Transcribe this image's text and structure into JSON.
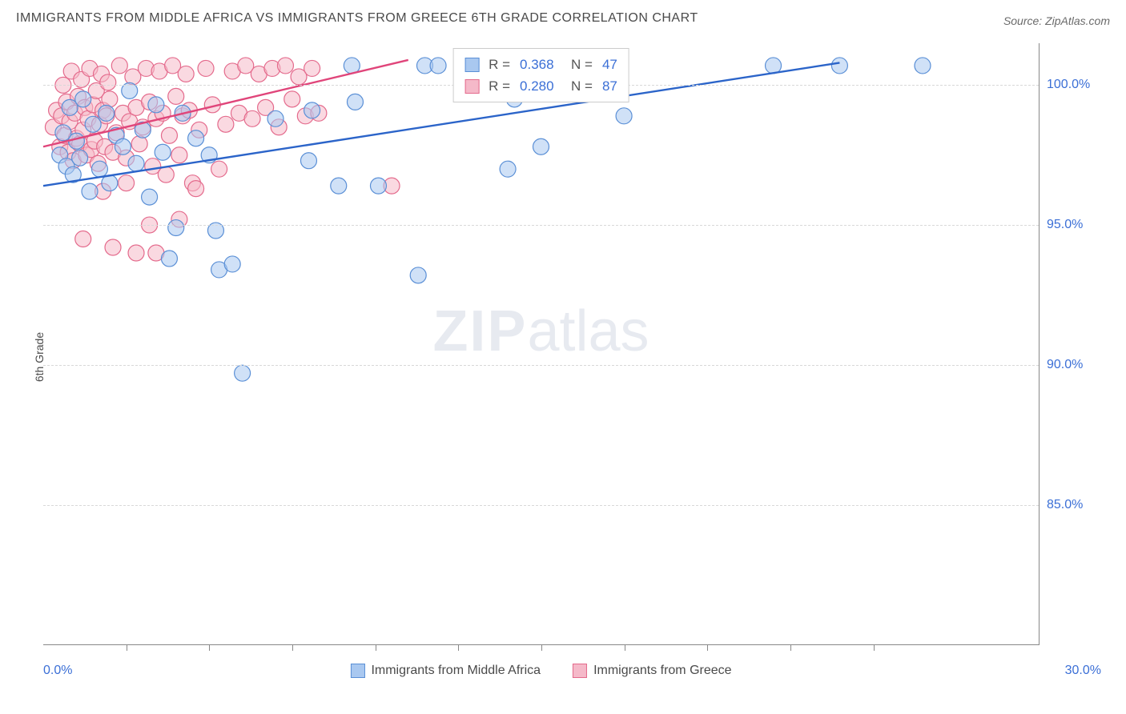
{
  "title": "IMMIGRANTS FROM MIDDLE AFRICA VS IMMIGRANTS FROM GREECE 6TH GRADE CORRELATION CHART",
  "source": "Source: ZipAtlas.com",
  "ylabel": "6th Grade",
  "watermark_a": "ZIP",
  "watermark_b": "atlas",
  "chart": {
    "type": "scatter",
    "plot_bg": "#ffffff",
    "grid_color": "#d8d8d8",
    "axis_color": "#888888",
    "xlim": [
      0.0,
      30.0
    ],
    "ylim": [
      80.0,
      101.5
    ],
    "y_ticks": [
      85.0,
      90.0,
      95.0,
      100.0
    ],
    "y_tick_labels": [
      "85.0%",
      "90.0%",
      "95.0%",
      "100.0%"
    ],
    "x_tick_positions": [
      2.5,
      5.0,
      7.5,
      10.0,
      12.5,
      15.0,
      17.5,
      20.0,
      22.5,
      25.0
    ],
    "x_axis_label_left": "0.0%",
    "x_axis_label_right": "30.0%",
    "marker_radius": 10,
    "marker_opacity": 0.55,
    "marker_stroke_width": 1.2,
    "line_width": 2.4,
    "series": [
      {
        "name": "Immigrants from Middle Africa",
        "color_fill": "#a9c8f0",
        "color_stroke": "#5a8fd6",
        "line_color": "#2b64c9",
        "R": "0.368",
        "N": "47",
        "trend": {
          "x1": 0.0,
          "y1": 96.4,
          "x2": 24.0,
          "y2": 100.8
        },
        "points": [
          [
            0.5,
            97.5
          ],
          [
            0.6,
            98.3
          ],
          [
            0.7,
            97.1
          ],
          [
            0.8,
            99.2
          ],
          [
            0.9,
            96.8
          ],
          [
            1.0,
            98.0
          ],
          [
            1.1,
            97.4
          ],
          [
            1.2,
            99.5
          ],
          [
            1.4,
            96.2
          ],
          [
            1.5,
            98.6
          ],
          [
            1.7,
            97.0
          ],
          [
            1.9,
            99.0
          ],
          [
            2.0,
            96.5
          ],
          [
            2.2,
            98.2
          ],
          [
            2.4,
            97.8
          ],
          [
            2.6,
            99.8
          ],
          [
            2.8,
            97.2
          ],
          [
            3.0,
            98.4
          ],
          [
            3.2,
            96.0
          ],
          [
            3.4,
            99.3
          ],
          [
            3.6,
            97.6
          ],
          [
            3.8,
            93.8
          ],
          [
            4.0,
            94.9
          ],
          [
            4.2,
            99.0
          ],
          [
            4.6,
            98.1
          ],
          [
            5.0,
            97.5
          ],
          [
            5.2,
            94.8
          ],
          [
            5.3,
            93.4
          ],
          [
            5.7,
            93.6
          ],
          [
            6.0,
            89.7
          ],
          [
            7.0,
            98.8
          ],
          [
            8.0,
            97.3
          ],
          [
            8.1,
            99.1
          ],
          [
            8.9,
            96.4
          ],
          [
            9.3,
            100.7
          ],
          [
            9.4,
            99.4
          ],
          [
            10.1,
            96.4
          ],
          [
            11.5,
            100.7
          ],
          [
            11.9,
            100.7
          ],
          [
            11.3,
            93.2
          ],
          [
            14.0,
            97.0
          ],
          [
            14.2,
            99.5
          ],
          [
            15.0,
            97.8
          ],
          [
            17.5,
            98.9
          ],
          [
            22.0,
            100.7
          ],
          [
            24.0,
            100.7
          ],
          [
            26.5,
            100.7
          ]
        ]
      },
      {
        "name": "Immigrants from Greece",
        "color_fill": "#f5b9c9",
        "color_stroke": "#e46a8c",
        "line_color": "#e0457a",
        "R": "0.280",
        "N": "87",
        "trend": {
          "x1": 0.0,
          "y1": 97.8,
          "x2": 11.0,
          "y2": 100.9
        },
        "points": [
          [
            0.3,
            98.5
          ],
          [
            0.4,
            99.1
          ],
          [
            0.5,
            97.8
          ],
          [
            0.55,
            98.9
          ],
          [
            0.6,
            100.0
          ],
          [
            0.65,
            98.2
          ],
          [
            0.7,
            99.4
          ],
          [
            0.75,
            97.6
          ],
          [
            0.8,
            98.7
          ],
          [
            0.85,
            100.5
          ],
          [
            0.9,
            97.3
          ],
          [
            0.95,
            99.0
          ],
          [
            1.0,
            98.1
          ],
          [
            1.05,
            99.6
          ],
          [
            1.1,
            97.9
          ],
          [
            1.15,
            100.2
          ],
          [
            1.2,
            98.4
          ],
          [
            1.25,
            99.2
          ],
          [
            1.3,
            97.5
          ],
          [
            1.35,
            98.8
          ],
          [
            1.4,
            100.6
          ],
          [
            1.45,
            97.7
          ],
          [
            1.5,
            99.3
          ],
          [
            1.55,
            98.0
          ],
          [
            1.6,
            99.8
          ],
          [
            1.65,
            97.2
          ],
          [
            1.7,
            98.6
          ],
          [
            1.75,
            100.4
          ],
          [
            1.8,
            99.1
          ],
          [
            1.85,
            97.8
          ],
          [
            1.9,
            98.9
          ],
          [
            1.95,
            100.1
          ],
          [
            2.0,
            99.5
          ],
          [
            2.1,
            97.6
          ],
          [
            2.2,
            98.3
          ],
          [
            2.3,
            100.7
          ],
          [
            2.4,
            99.0
          ],
          [
            2.5,
            97.4
          ],
          [
            2.6,
            98.7
          ],
          [
            2.7,
            100.3
          ],
          [
            2.8,
            99.2
          ],
          [
            2.9,
            97.9
          ],
          [
            3.0,
            98.5
          ],
          [
            3.1,
            100.6
          ],
          [
            3.2,
            99.4
          ],
          [
            3.3,
            97.1
          ],
          [
            3.4,
            98.8
          ],
          [
            3.5,
            100.5
          ],
          [
            3.6,
            99.0
          ],
          [
            3.7,
            96.8
          ],
          [
            3.8,
            98.2
          ],
          [
            3.9,
            100.7
          ],
          [
            4.0,
            99.6
          ],
          [
            4.1,
            97.5
          ],
          [
            4.2,
            98.9
          ],
          [
            4.3,
            100.4
          ],
          [
            4.4,
            99.1
          ],
          [
            4.5,
            96.5
          ],
          [
            4.7,
            98.4
          ],
          [
            4.9,
            100.6
          ],
          [
            5.1,
            99.3
          ],
          [
            5.3,
            97.0
          ],
          [
            5.5,
            98.6
          ],
          [
            5.7,
            100.5
          ],
          [
            5.9,
            99.0
          ],
          [
            6.1,
            100.7
          ],
          [
            6.3,
            98.8
          ],
          [
            6.5,
            100.4
          ],
          [
            6.7,
            99.2
          ],
          [
            6.9,
            100.6
          ],
          [
            7.1,
            98.5
          ],
          [
            7.3,
            100.7
          ],
          [
            7.5,
            99.5
          ],
          [
            7.7,
            100.3
          ],
          [
            7.9,
            98.9
          ],
          [
            8.1,
            100.6
          ],
          [
            8.3,
            99.0
          ],
          [
            1.2,
            94.5
          ],
          [
            2.1,
            94.2
          ],
          [
            2.8,
            94.0
          ],
          [
            3.2,
            95.0
          ],
          [
            3.4,
            94.0
          ],
          [
            4.1,
            95.2
          ],
          [
            4.6,
            96.3
          ],
          [
            10.5,
            96.4
          ],
          [
            2.5,
            96.5
          ],
          [
            1.8,
            96.2
          ]
        ]
      }
    ],
    "legend_bottom": [
      {
        "label": "Immigrants from Middle Africa",
        "fill": "#a9c8f0",
        "stroke": "#5a8fd6"
      },
      {
        "label": "Immigrants from Greece",
        "fill": "#f5b9c9",
        "stroke": "#e46a8c"
      }
    ]
  }
}
